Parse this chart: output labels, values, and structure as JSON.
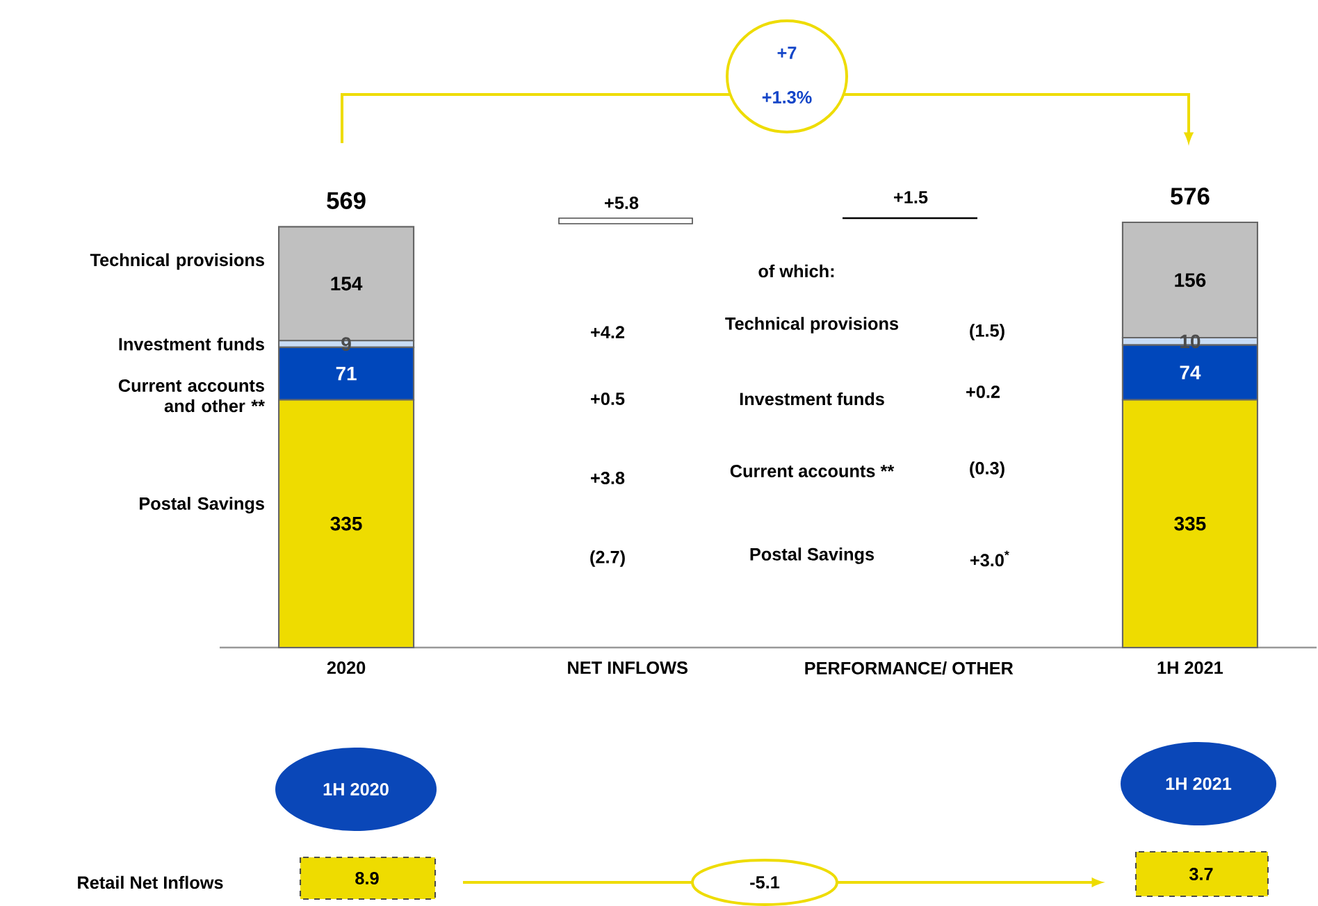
{
  "chart_data": {
    "type": "bar",
    "stacked": true,
    "data_labels": true,
    "tick_labels": "x",
    "categories": [
      "2020",
      "NET INFLOWS",
      "PERFORMANCE/ OTHER",
      "1H 2021"
    ],
    "series": [
      {
        "name": "Postal Savings",
        "color": "#eedc00",
        "values": [
          335,
          null,
          null,
          335
        ]
      },
      {
        "name": "Current accounts and other **",
        "color": "#0047bb",
        "values": [
          71,
          null,
          null,
          74
        ]
      },
      {
        "name": "Investment funds",
        "color": "#c9dcf5",
        "values": [
          9,
          null,
          null,
          10
        ]
      },
      {
        "name": "Technical provisions",
        "color": "#c0c0c0",
        "values": [
          154,
          null,
          null,
          156
        ]
      }
    ],
    "totals": [
      "569",
      null,
      null,
      "576"
    ],
    "annotations": [
      "+7",
      "+1.3%",
      "+5.8",
      "+1.5",
      "of which:",
      "+4.2",
      "Technical provisions",
      "(1.5)",
      "+0.5",
      "Investment funds",
      "+0.2",
      "+3.8",
      "Current accounts **",
      "(0.3)",
      "(2.7)",
      "Postal Savings",
      "+3.0$^{*}$",
      "1H 2020",
      "1H 2021",
      "Retail Net Inflows",
      "8.9",
      "-5.1",
      "3.7"
    ]
  }
}
